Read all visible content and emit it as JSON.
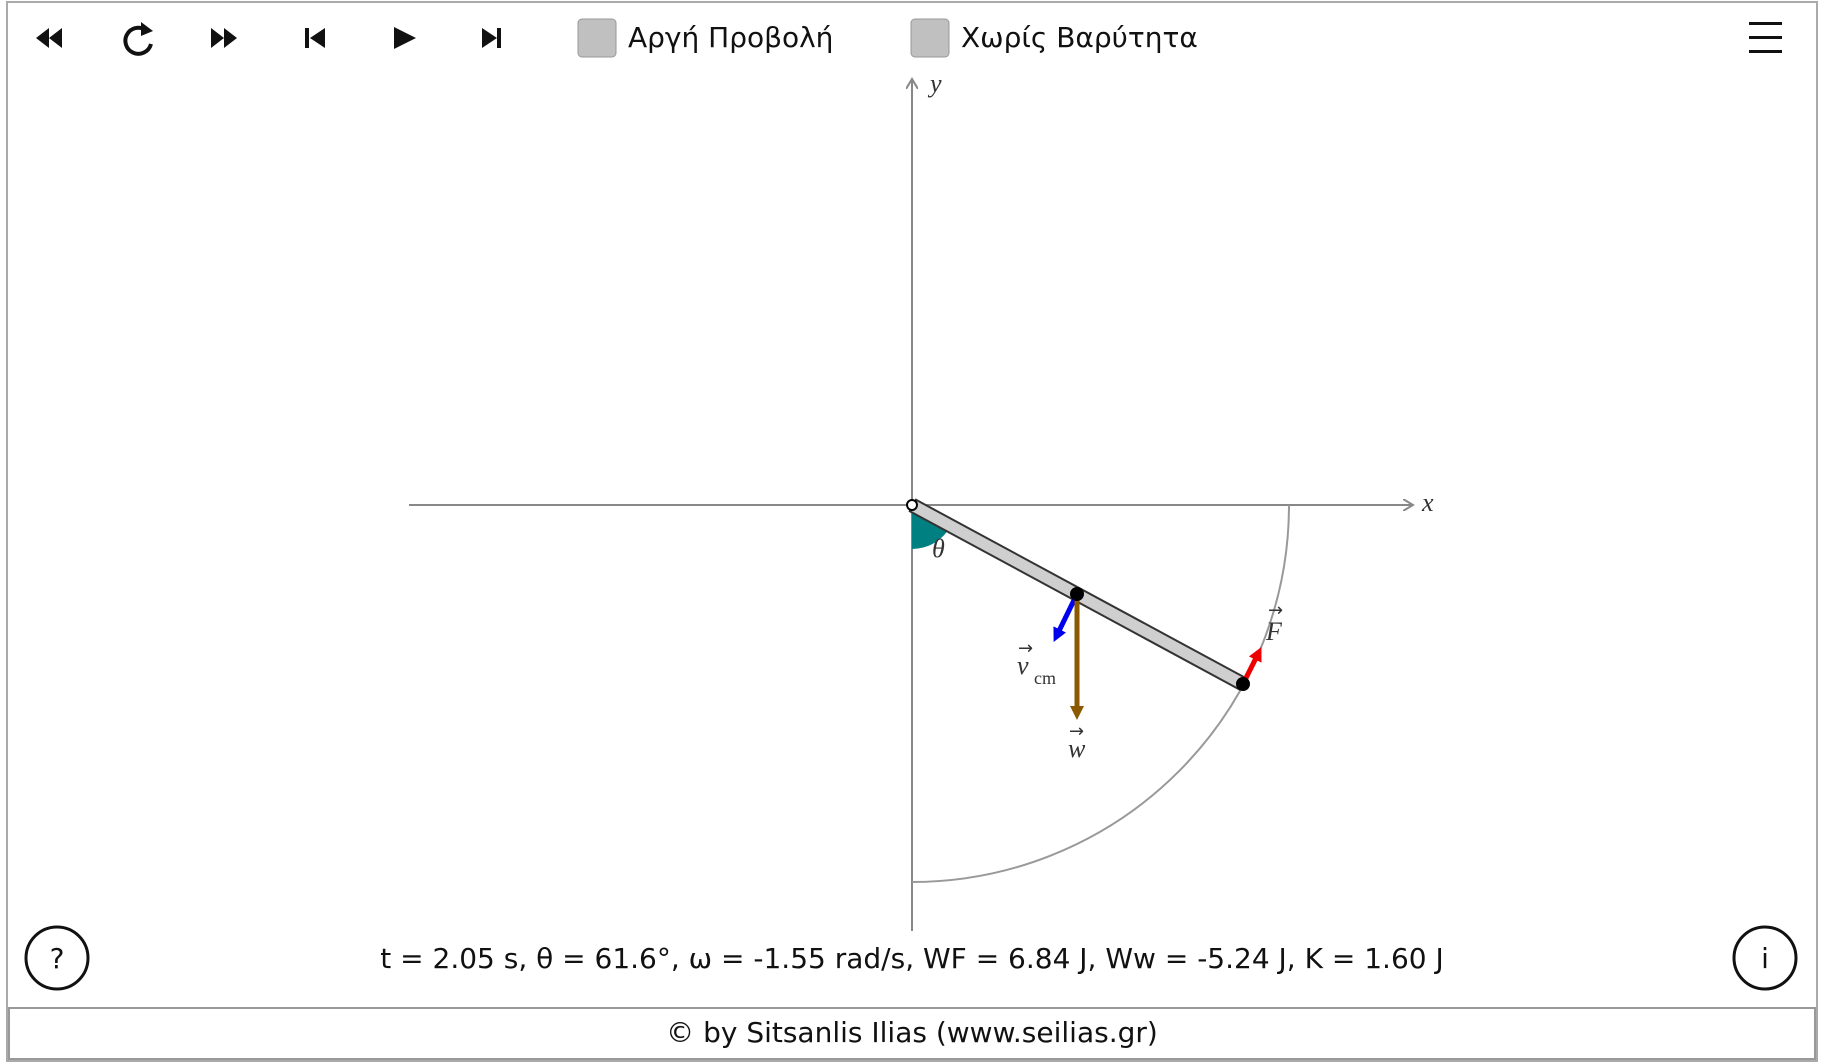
{
  "toolbar": {
    "slow_motion": "Αργή Προβολή",
    "no_gravity": "Χωρίς Βαρύτητα"
  },
  "axes": {
    "x": "x",
    "y": "y"
  },
  "labels": {
    "theta": "θ",
    "velocity": "v",
    "velocity_sub": "cm",
    "force": "F",
    "weight": "w"
  },
  "info": "t = 2.05 s, θ = 61.6°, ω = -1.55 rad/s, WF = 6.84 J, Ww = -5.24 J, K = 1.60 J",
  "footer": "© by Sitsanlis Ilias (www.seilias.gr)"
}
